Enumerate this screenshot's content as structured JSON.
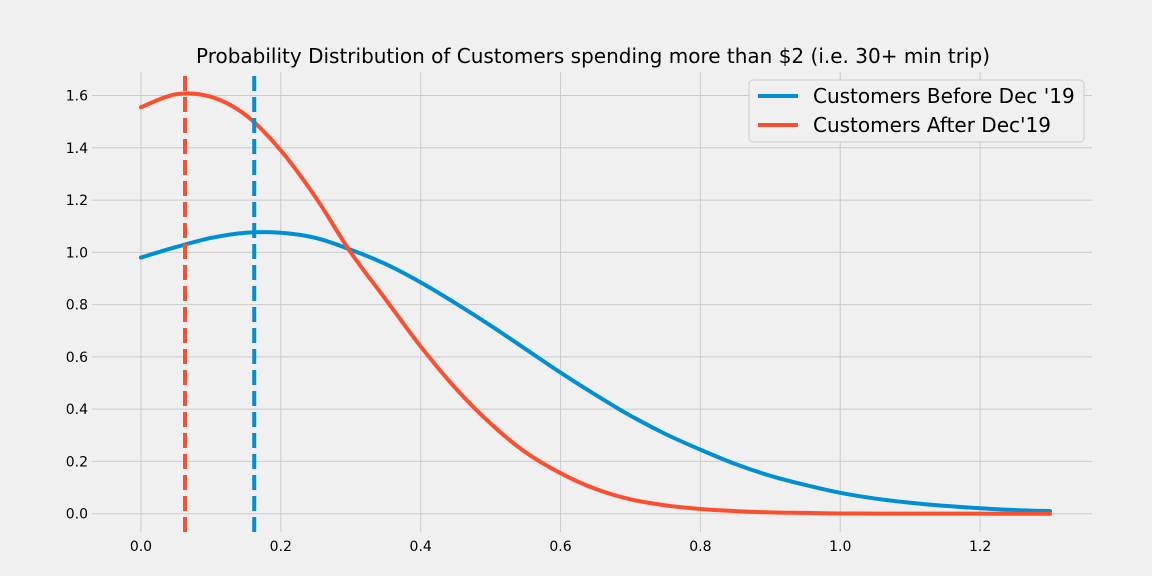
{
  "chart_data": {
    "type": "line",
    "title": "Probability Distribution of Customers spending more than $2 (i.e. 30+ min trip)",
    "xlabel": "",
    "ylabel": "",
    "xlim": [
      -0.07,
      1.36
    ],
    "ylim": [
      -0.07,
      1.69
    ],
    "x_ticks": [
      0.0,
      0.2,
      0.4,
      0.6,
      0.8,
      1.0,
      1.2
    ],
    "y_ticks": [
      0.0,
      0.2,
      0.4,
      0.6,
      0.8,
      1.0,
      1.2,
      1.4,
      1.6
    ],
    "x_tick_labels": [
      "0.0",
      "0.2",
      "0.4",
      "0.6",
      "0.8",
      "1.0",
      "1.2"
    ],
    "y_tick_labels": [
      "0.0",
      "0.2",
      "0.4",
      "0.6",
      "0.8",
      "1.0",
      "1.2",
      "1.4",
      "1.6"
    ],
    "grid": true,
    "legend_position": "top-right",
    "series": [
      {
        "name": "Customers Before Dec '19",
        "color": "#008fd5",
        "x": [
          0.0,
          0.05,
          0.1,
          0.15,
          0.2,
          0.25,
          0.3,
          0.35,
          0.4,
          0.45,
          0.5,
          0.55,
          0.6,
          0.65,
          0.7,
          0.75,
          0.8,
          0.85,
          0.9,
          0.95,
          1.0,
          1.05,
          1.1,
          1.15,
          1.2,
          1.25,
          1.3
        ],
        "y": [
          0.98,
          1.02,
          1.055,
          1.075,
          1.075,
          1.055,
          1.01,
          0.955,
          0.885,
          0.805,
          0.72,
          0.63,
          0.54,
          0.455,
          0.375,
          0.305,
          0.245,
          0.19,
          0.145,
          0.11,
          0.08,
          0.058,
          0.042,
          0.03,
          0.021,
          0.014,
          0.01
        ]
      },
      {
        "name": "Customers After Dec'19",
        "color": "#fc4f30",
        "x": [
          0.0,
          0.05,
          0.1,
          0.15,
          0.2,
          0.25,
          0.3,
          0.35,
          0.4,
          0.45,
          0.5,
          0.55,
          0.6,
          0.65,
          0.7,
          0.75,
          0.8,
          0.85,
          0.9,
          0.95,
          1.0,
          1.05,
          1.1,
          1.15,
          1.2,
          1.25,
          1.3
        ],
        "y": [
          1.555,
          1.605,
          1.595,
          1.525,
          1.39,
          1.21,
          1.0,
          0.82,
          0.64,
          0.48,
          0.345,
          0.235,
          0.155,
          0.095,
          0.055,
          0.032,
          0.018,
          0.01,
          0.005,
          0.003,
          0.001,
          0.0005,
          0.0003,
          0.0002,
          0.0001,
          0.0,
          0.0
        ]
      }
    ],
    "vlines": [
      {
        "x": 0.162,
        "color": "#008fd5",
        "style": "dashed"
      },
      {
        "x": 0.063,
        "color": "#fc4f30",
        "style": "dashed"
      }
    ]
  }
}
